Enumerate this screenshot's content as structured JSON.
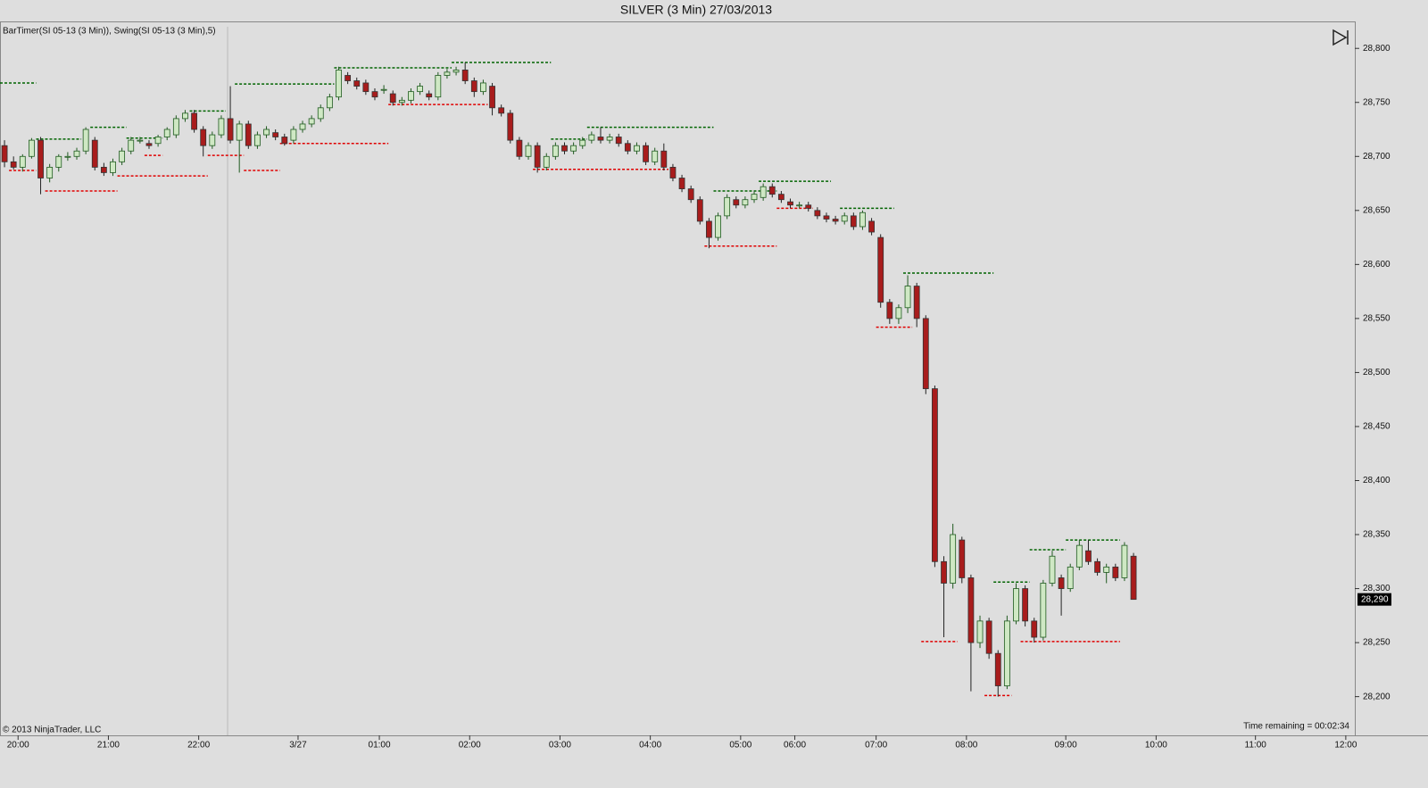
{
  "chart_data": {
    "type": "candlestick",
    "title": "SILVER (3 Min)  27/03/2013",
    "indicator_label": "BarTimer(SI 05-13 (3 Min)), Swing(SI 05-13 (3 Min),5)",
    "copyright": "© 2013 NinjaTrader, LLC",
    "time_remaining": "Time remaining = 00:02:34",
    "up_color": "#cfe8c4",
    "up_border": "#1f5a1f",
    "down_color": "#a81c1c",
    "swing_high_color": "#006400",
    "swing_low_color": "#e00000",
    "last_price": {
      "value": 28290,
      "label": "28,290"
    },
    "xlim": [
      0,
      150
    ],
    "xticks": [
      {
        "value": 2,
        "label": "20:00"
      },
      {
        "value": 12,
        "label": "21:00"
      },
      {
        "value": 22,
        "label": "22:00"
      },
      {
        "value": 33,
        "label": "3/27"
      },
      {
        "value": 42,
        "label": "01:00"
      },
      {
        "value": 52,
        "label": "02:00"
      },
      {
        "value": 62,
        "label": "03:00"
      },
      {
        "value": 72,
        "label": "04:00"
      },
      {
        "value": 82,
        "label": "05:00"
      },
      {
        "value": 88,
        "label": "06:00"
      },
      {
        "value": 97,
        "label": "07:00"
      },
      {
        "value": 107,
        "label": "08:00"
      },
      {
        "value": 118,
        "label": "09:00"
      },
      {
        "value": 128,
        "label": "10:00"
      },
      {
        "value": 139,
        "label": "11:00"
      },
      {
        "value": 149,
        "label": "12:00"
      }
    ],
    "ylim": [
      28165,
      28820
    ],
    "yticks": [
      {
        "value": 28200,
        "label": "28,200"
      },
      {
        "value": 28250,
        "label": "28,250"
      },
      {
        "value": 28300,
        "label": "28,300"
      },
      {
        "value": 28350,
        "label": "28,350"
      },
      {
        "value": 28400,
        "label": "28,400"
      },
      {
        "value": 28450,
        "label": "28,450"
      },
      {
        "value": 28500,
        "label": "28,500"
      },
      {
        "value": 28550,
        "label": "28,550"
      },
      {
        "value": 28600,
        "label": "28,600"
      },
      {
        "value": 28650,
        "label": "28,650"
      },
      {
        "value": 28700,
        "label": "28,700"
      },
      {
        "value": 28750,
        "label": "28,750"
      },
      {
        "value": 28800,
        "label": "28,800"
      }
    ],
    "ohlc": [
      [
        28710,
        28715,
        28690,
        28695
      ],
      [
        28695,
        28700,
        28688,
        28690
      ],
      [
        28690,
        28702,
        28686,
        28700
      ],
      [
        28700,
        28717,
        28698,
        28715
      ],
      [
        28715,
        28718,
        28665,
        28680
      ],
      [
        28680,
        28693,
        28676,
        28690
      ],
      [
        28690,
        28702,
        28686,
        28700
      ],
      [
        28700,
        28704,
        28696,
        28700
      ],
      [
        28700,
        28708,
        28697,
        28705
      ],
      [
        28705,
        28727,
        28702,
        28725
      ],
      [
        28715,
        28718,
        28687,
        28690
      ],
      [
        28690,
        28694,
        28682,
        28685
      ],
      [
        28685,
        28698,
        28682,
        28695
      ],
      [
        28695,
        28708,
        28692,
        28705
      ],
      [
        28705,
        28718,
        28702,
        28715
      ],
      [
        28715,
        28718,
        28712,
        28715
      ],
      [
        28712,
        28715,
        28707,
        28710
      ],
      [
        28712,
        28720,
        28709,
        28718
      ],
      [
        28718,
        28727,
        28715,
        28725
      ],
      [
        28720,
        28738,
        28717,
        28735
      ],
      [
        28735,
        28743,
        28732,
        28740
      ],
      [
        28740,
        28743,
        28722,
        28725
      ],
      [
        28725,
        28728,
        28700,
        28710
      ],
      [
        28710,
        28723,
        28707,
        28720
      ],
      [
        28720,
        28738,
        28717,
        28735
      ],
      [
        28735,
        28765,
        28712,
        28715
      ],
      [
        28715,
        28733,
        28685,
        28730
      ],
      [
        28730,
        28733,
        28707,
        28710
      ],
      [
        28710,
        28723,
        28707,
        28720
      ],
      [
        28720,
        28728,
        28717,
        28725
      ],
      [
        28722,
        28725,
        28715,
        28718
      ],
      [
        28718,
        28721,
        28710,
        28712
      ],
      [
        28715,
        28728,
        28712,
        28725
      ],
      [
        28725,
        28733,
        28722,
        28730
      ],
      [
        28730,
        28738,
        28727,
        28735
      ],
      [
        28735,
        28748,
        28732,
        28745
      ],
      [
        28745,
        28758,
        28742,
        28755
      ],
      [
        28755,
        28783,
        28752,
        28780
      ],
      [
        28775,
        28778,
        28767,
        28770
      ],
      [
        28770,
        28773,
        28762,
        28765
      ],
      [
        28768,
        28771,
        28757,
        28760
      ],
      [
        28760,
        28763,
        28752,
        28755
      ],
      [
        28762,
        28766,
        28758,
        28762
      ],
      [
        28758,
        28761,
        28747,
        28750
      ],
      [
        28750,
        28755,
        28747,
        28752
      ],
      [
        28752,
        28763,
        28749,
        28760
      ],
      [
        28760,
        28768,
        28757,
        28765
      ],
      [
        28758,
        28761,
        28752,
        28755
      ],
      [
        28755,
        28778,
        28752,
        28775
      ],
      [
        28775,
        28781,
        28772,
        28778
      ],
      [
        28778,
        28783,
        28775,
        28780
      ],
      [
        28780,
        28787,
        28767,
        28770
      ],
      [
        28770,
        28773,
        28755,
        28760
      ],
      [
        28760,
        28771,
        28757,
        28768
      ],
      [
        28765,
        28768,
        28738,
        28745
      ],
      [
        28745,
        28748,
        28737,
        28740
      ],
      [
        28740,
        28743,
        28712,
        28715
      ],
      [
        28715,
        28718,
        28697,
        28700
      ],
      [
        28700,
        28713,
        28697,
        28710
      ],
      [
        28710,
        28713,
        28685,
        28690
      ],
      [
        28690,
        28703,
        28687,
        28700
      ],
      [
        28700,
        28713,
        28697,
        28710
      ],
      [
        28710,
        28713,
        28702,
        28705
      ],
      [
        28705,
        28713,
        28702,
        28710
      ],
      [
        28710,
        28718,
        28707,
        28715
      ],
      [
        28715,
        28723,
        28712,
        28720
      ],
      [
        28718,
        28727,
        28712,
        28715
      ],
      [
        28715,
        28721,
        28712,
        28718
      ],
      [
        28718,
        28721,
        28709,
        28712
      ],
      [
        28712,
        28715,
        28702,
        28705
      ],
      [
        28705,
        28713,
        28702,
        28710
      ],
      [
        28710,
        28713,
        28692,
        28695
      ],
      [
        28695,
        28708,
        28692,
        28705
      ],
      [
        28705,
        28712,
        28687,
        28690
      ],
      [
        28690,
        28693,
        28677,
        28680
      ],
      [
        28680,
        28683,
        28667,
        28670
      ],
      [
        28670,
        28673,
        28657,
        28660
      ],
      [
        28660,
        28663,
        28637,
        28640
      ],
      [
        28640,
        28643,
        28615,
        28625
      ],
      [
        28625,
        28648,
        28622,
        28645
      ],
      [
        28645,
        28665,
        28642,
        28662
      ],
      [
        28660,
        28663,
        28652,
        28655
      ],
      [
        28655,
        28663,
        28652,
        28660
      ],
      [
        28660,
        28668,
        28657,
        28665
      ],
      [
        28662,
        28675,
        28659,
        28672
      ],
      [
        28672,
        28675,
        28662,
        28665
      ],
      [
        28665,
        28668,
        28657,
        28660
      ],
      [
        28658,
        28661,
        28652,
        28655
      ],
      [
        28655,
        28658,
        28652,
        28655
      ],
      [
        28655,
        28658,
        28649,
        28652
      ],
      [
        28650,
        28653,
        28642,
        28645
      ],
      [
        28645,
        28648,
        28639,
        28642
      ],
      [
        28642,
        28645,
        28637,
        28640
      ],
      [
        28640,
        28648,
        28637,
        28645
      ],
      [
        28645,
        28648,
        28632,
        28635
      ],
      [
        28635,
        28650,
        28632,
        28648
      ],
      [
        28640,
        28643,
        28627,
        28630
      ],
      [
        28625,
        28628,
        28560,
        28565
      ],
      [
        28565,
        28568,
        28545,
        28550
      ],
      [
        28550,
        28563,
        28545,
        28560
      ],
      [
        28560,
        28590,
        28555,
        28580
      ],
      [
        28580,
        28583,
        28542,
        28550
      ],
      [
        28550,
        28553,
        28480,
        28485
      ],
      [
        28485,
        28488,
        28320,
        28325
      ],
      [
        28325,
        28330,
        28255,
        28305
      ],
      [
        28305,
        28360,
        28300,
        28350
      ],
      [
        28345,
        28348,
        28305,
        28310
      ],
      [
        28310,
        28313,
        28205,
        28250
      ],
      [
        28250,
        28275,
        28245,
        28270
      ],
      [
        28270,
        28273,
        28235,
        28240
      ],
      [
        28240,
        28243,
        28200,
        28210
      ],
      [
        28210,
        28275,
        28207,
        28270
      ],
      [
        28270,
        28305,
        28267,
        28300
      ],
      [
        28300,
        28303,
        28265,
        28270
      ],
      [
        28270,
        28273,
        28250,
        28255
      ],
      [
        28255,
        28308,
        28252,
        28305
      ],
      [
        28305,
        28335,
        28302,
        28330
      ],
      [
        28310,
        28313,
        28275,
        28300
      ],
      [
        28300,
        28323,
        28297,
        28320
      ],
      [
        28320,
        28345,
        28317,
        28340
      ],
      [
        28335,
        28345,
        28322,
        28325
      ],
      [
        28325,
        28328,
        28312,
        28315
      ],
      [
        28315,
        28323,
        28305,
        28320
      ],
      [
        28320,
        28323,
        28307,
        28310
      ],
      [
        28310,
        28343,
        28307,
        28340
      ],
      [
        28330,
        28333,
        28290,
        28290
      ]
    ],
    "swing_highs": [
      {
        "from": 0,
        "to": 4,
        "price": 28768
      },
      {
        "from": 4,
        "to": 9,
        "price": 28716
      },
      {
        "from": 10,
        "to": 14,
        "price": 28727
      },
      {
        "from": 14,
        "to": 18,
        "price": 28717
      },
      {
        "from": 21,
        "to": 25,
        "price": 28742
      },
      {
        "from": 26,
        "to": 37,
        "price": 28767
      },
      {
        "from": 37,
        "to": 50,
        "price": 28782
      },
      {
        "from": 50,
        "to": 61,
        "price": 28787
      },
      {
        "from": 61,
        "to": 65,
        "price": 28716
      },
      {
        "from": 65,
        "to": 79,
        "price": 28727
      },
      {
        "from": 79,
        "to": 86,
        "price": 28668
      },
      {
        "from": 84,
        "to": 92,
        "price": 28677
      },
      {
        "from": 93,
        "to": 99,
        "price": 28652
      },
      {
        "from": 100,
        "to": 110,
        "price": 28592
      },
      {
        "from": 110,
        "to": 114,
        "price": 28306
      },
      {
        "from": 114,
        "to": 118,
        "price": 28336
      },
      {
        "from": 118,
        "to": 124,
        "price": 28345
      }
    ],
    "swing_lows": [
      {
        "from": 1,
        "to": 4,
        "price": 28687
      },
      {
        "from": 5,
        "to": 13,
        "price": 28668
      },
      {
        "from": 13,
        "to": 23,
        "price": 28682
      },
      {
        "from": 16,
        "to": 18,
        "price": 28701
      },
      {
        "from": 23,
        "to": 27,
        "price": 28701
      },
      {
        "from": 27,
        "to": 31,
        "price": 28687
      },
      {
        "from": 31,
        "to": 43,
        "price": 28712
      },
      {
        "from": 43,
        "to": 54,
        "price": 28748
      },
      {
        "from": 59,
        "to": 74,
        "price": 28688
      },
      {
        "from": 78,
        "to": 86,
        "price": 28617
      },
      {
        "from": 86,
        "to": 90,
        "price": 28652
      },
      {
        "from": 97,
        "to": 101,
        "price": 28542
      },
      {
        "from": 102,
        "to": 106,
        "price": 28251
      },
      {
        "from": 113,
        "to": 124,
        "price": 28251
      },
      {
        "from": 109,
        "to": 112,
        "price": 28201
      }
    ]
  }
}
